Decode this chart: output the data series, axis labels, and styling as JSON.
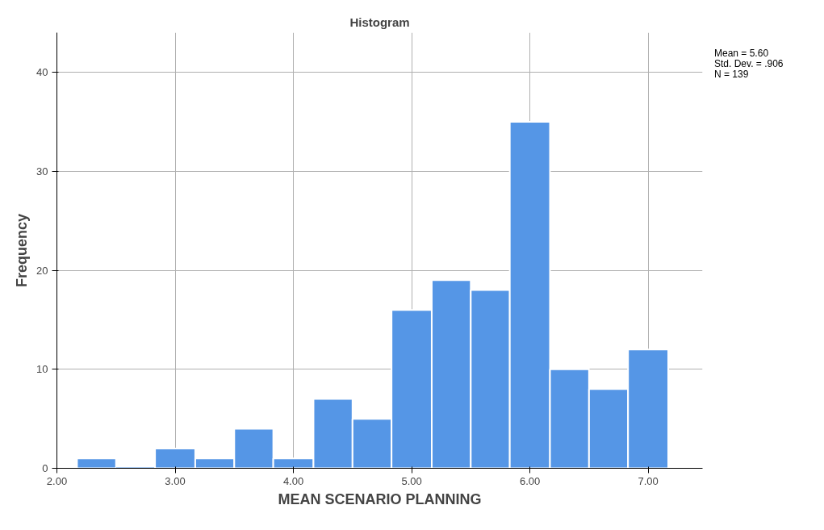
{
  "chart_data": {
    "type": "histogram",
    "title": "Histogram",
    "xlabel": "MEAN SCENARIO PLANNING",
    "ylabel": "Frequency",
    "bins": [
      2.17,
      2.5,
      2.83,
      3.17,
      3.5,
      3.83,
      4.17,
      4.5,
      4.83,
      5.17,
      5.5,
      5.83,
      6.17,
      6.5,
      6.83,
      7.17
    ],
    "values": [
      1,
      0,
      2,
      1,
      4,
      1,
      7,
      5,
      16,
      19,
      18,
      35,
      10,
      8,
      12
    ],
    "color": "#5596e6",
    "xlim": [
      2.0,
      7.46
    ],
    "xticks": [
      {
        "value": 2,
        "label": "2.00"
      },
      {
        "value": 3,
        "label": "3.00"
      },
      {
        "value": 4,
        "label": "4.00"
      },
      {
        "value": 5,
        "label": "5.00"
      },
      {
        "value": 6,
        "label": "6.00"
      },
      {
        "value": 7,
        "label": "7.00"
      }
    ],
    "ylim": [
      0,
      44
    ],
    "yticks": [
      0,
      10,
      20,
      30,
      40
    ],
    "grid": true,
    "annotations": [
      "Mean = 5.60\nStd. Dev. = .906\nN = 139"
    ]
  }
}
